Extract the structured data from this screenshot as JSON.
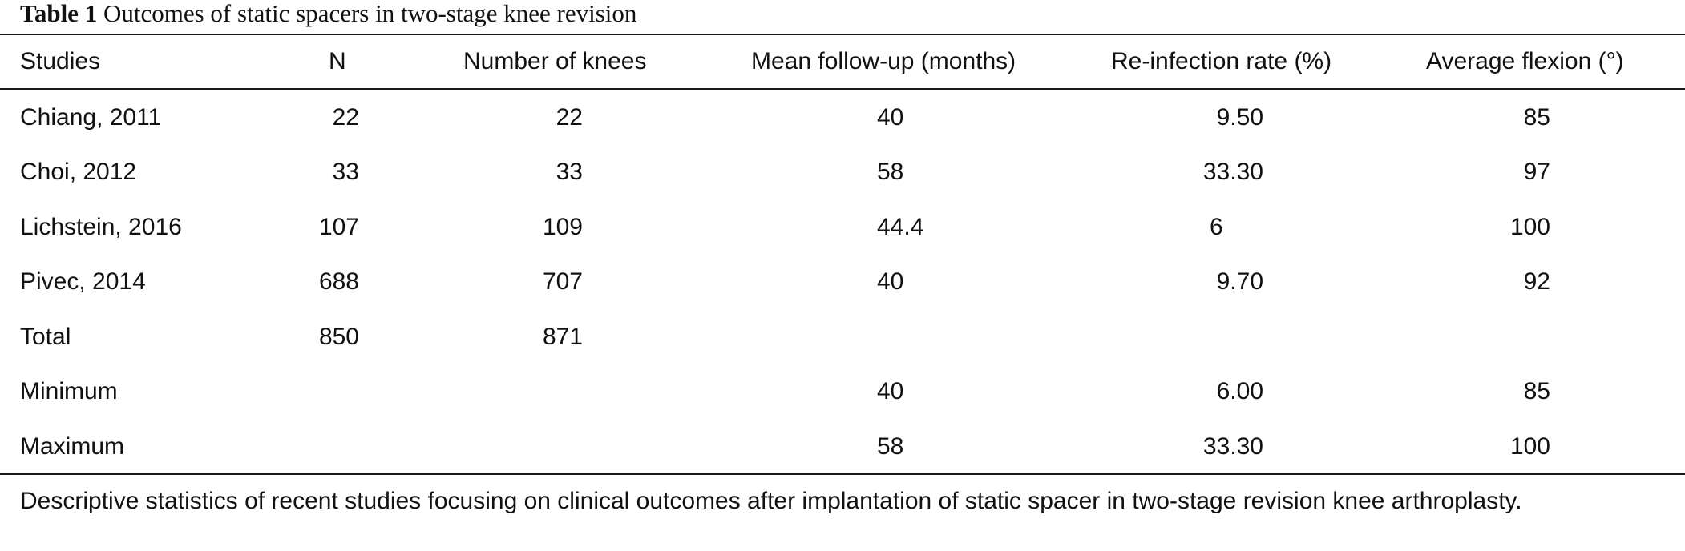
{
  "table": {
    "caption_label": "Table 1",
    "caption_text": "Outcomes of static spacers in two-stage knee revision",
    "headers": {
      "study": "Studies",
      "n": "N",
      "knees": "Number of knees",
      "followup": "Mean follow-up (months)",
      "reinfection": "Re-infection rate (%)",
      "flexion": "Average flexion (°)"
    },
    "rows": [
      {
        "study": "Chiang, 2011",
        "n": "22",
        "knees": "22",
        "followup": "40",
        "reinfection": "9.50",
        "flexion": "85"
      },
      {
        "study": "Choi, 2012",
        "n": "33",
        "knees": "33",
        "followup": "58",
        "reinfection": "33.30",
        "flexion": "97"
      },
      {
        "study": "Lichstein, 2016",
        "n": "107",
        "knees": "109",
        "followup": "44.4",
        "reinfection": "6",
        "flexion": "100"
      },
      {
        "study": "Pivec, 2014",
        "n": "688",
        "knees": "707",
        "followup": "40",
        "reinfection": "9.70",
        "flexion": "92"
      },
      {
        "study": "Total",
        "n": "850",
        "knees": "871",
        "followup": "",
        "reinfection": "",
        "flexion": ""
      },
      {
        "study": "Minimum",
        "n": "",
        "knees": "",
        "followup": "40",
        "reinfection": "6.00",
        "flexion": "85"
      },
      {
        "study": "Maximum",
        "n": "",
        "knees": "",
        "followup": "58",
        "reinfection": "33.30",
        "flexion": "100"
      }
    ],
    "footnote": "Descriptive statistics of recent studies focusing on clinical outcomes after implantation of static spacer in two-stage revision knee arthroplasty."
  }
}
